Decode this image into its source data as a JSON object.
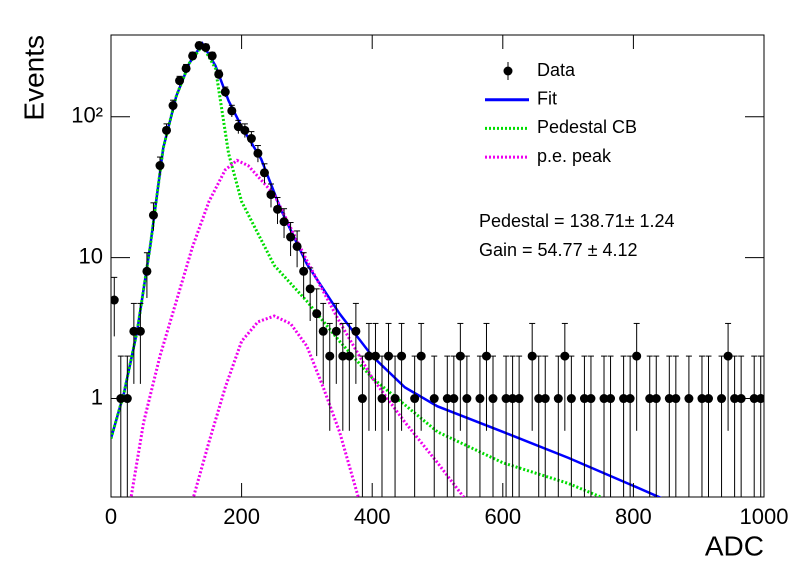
{
  "chart_data": {
    "type": "histogram-fit",
    "xlabel": "ADC",
    "ylabel": "Events",
    "xlim": [
      0,
      1000
    ],
    "ylim": [
      0.2,
      380
    ],
    "ylog": true,
    "xticks": [
      0,
      200,
      400,
      600,
      800,
      1000
    ],
    "yticks": [
      1,
      10,
      {
        "value": 100,
        "label": "10²"
      }
    ],
    "legend": "top-right",
    "annotations": [
      "Pedestal = 138.71± 1.24",
      "Gain = 54.77 ± 4.12"
    ],
    "series": [
      {
        "name": "Data",
        "kind": "points",
        "color": "#000000",
        "x": [
          5,
          15,
          25,
          35,
          45,
          55,
          65,
          75,
          85,
          95,
          105,
          115,
          125,
          135,
          145,
          155,
          165,
          175,
          185,
          195,
          205,
          215,
          225,
          235,
          245,
          255,
          265,
          275,
          285,
          295,
          305,
          315,
          325,
          335,
          345,
          355,
          365,
          375,
          385,
          395,
          405,
          415,
          425,
          435,
          445,
          455,
          465,
          475,
          485,
          495,
          505,
          515,
          525,
          535,
          545,
          555,
          565,
          575,
          585,
          595,
          605,
          615,
          625,
          635,
          645,
          655,
          665,
          675,
          685,
          695,
          705,
          715,
          725,
          735,
          745,
          755,
          765,
          775,
          785,
          795,
          805,
          815,
          825,
          835,
          845,
          855,
          865,
          875,
          885,
          895,
          905,
          915,
          925,
          935,
          945,
          955,
          965,
          975,
          985,
          995
        ],
        "values": [
          5,
          1,
          1,
          3,
          3,
          8,
          20,
          45,
          80,
          120,
          180,
          220,
          270,
          320,
          310,
          270,
          200,
          150,
          110,
          85,
          80,
          70,
          55,
          40,
          28,
          22,
          18,
          14,
          12,
          8,
          6,
          4,
          3,
          2,
          3,
          2,
          2,
          3,
          1,
          2,
          2,
          1,
          2,
          1,
          2,
          null,
          1,
          2,
          null,
          1,
          null,
          1,
          1,
          2,
          1,
          null,
          1,
          2,
          1,
          null,
          1,
          1,
          1,
          null,
          2,
          1,
          1,
          null,
          1,
          2,
          1,
          null,
          1,
          1,
          null,
          1,
          1,
          null,
          1,
          1,
          2,
          null,
          1,
          1,
          null,
          1,
          1,
          null,
          1,
          null,
          1,
          1,
          null,
          1,
          2,
          1,
          1,
          null,
          1,
          1
        ],
        "errors": [
          2.24,
          1,
          1,
          1.73,
          1.73,
          2.83,
          4.47,
          6.71,
          8.94,
          10.95,
          13.42,
          14.83,
          16.43,
          17.89,
          17.61,
          16.43,
          14.14,
          12.25,
          10.49,
          9.22,
          8.94,
          8.37,
          7.42,
          6.32,
          5.29,
          4.69,
          4.24,
          3.74,
          3.46,
          2.83,
          2.45,
          2,
          1.73,
          1.41,
          1.73,
          1.41,
          1.41,
          1.73,
          1,
          1.41,
          1.41,
          1,
          1.41,
          1,
          1.41,
          null,
          1,
          1.41,
          null,
          1,
          null,
          1,
          1,
          1.41,
          1,
          null,
          1,
          1.41,
          1,
          null,
          1,
          1,
          1,
          null,
          1.41,
          1,
          1,
          null,
          1,
          1.41,
          1,
          null,
          1,
          1,
          null,
          1,
          1,
          null,
          1,
          1,
          1.41,
          null,
          1,
          1,
          null,
          1,
          1,
          null,
          1,
          null,
          1,
          1,
          null,
          1,
          1.41,
          1,
          1,
          null,
          1,
          1
        ]
      },
      {
        "name": "Fit",
        "kind": "line",
        "dash": "solid",
        "color": "#0000ff",
        "x": [
          0,
          20,
          40,
          60,
          80,
          100,
          120,
          140,
          160,
          180,
          200,
          230,
          260,
          300,
          350,
          400,
          450,
          500,
          600,
          700,
          800,
          850
        ],
        "values": [
          0.52,
          1.1,
          3,
          12,
          60,
          140,
          240,
          330,
          230,
          130,
          85,
          50,
          22,
          9,
          4,
          2,
          1.2,
          0.88,
          0.58,
          0.38,
          0.24,
          0.19
        ]
      },
      {
        "name": "Pedestal CB",
        "kind": "line",
        "dash": "dotted",
        "color": "#00dd00",
        "x": [
          0,
          20,
          40,
          60,
          80,
          100,
          120,
          140,
          160,
          180,
          200,
          250,
          300,
          350,
          400,
          500,
          600,
          700,
          750
        ],
        "values": [
          0.52,
          1.1,
          3,
          12,
          60,
          140,
          240,
          320,
          220,
          55,
          25,
          8.8,
          4.9,
          2.55,
          1.4,
          0.58,
          0.35,
          0.25,
          0.2
        ]
      },
      {
        "name": "p.e. peak",
        "kind": "line",
        "dash": "dotted",
        "color": "#ee00ee",
        "x": [
          30,
          50,
          75,
          100,
          125,
          150,
          175,
          193,
          210,
          250,
          300,
          350,
          400,
          450,
          500,
          540
        ],
        "values": [
          0.19,
          0.68,
          2,
          4.9,
          12,
          25,
          42,
          49,
          45,
          28,
          9.5,
          3.5,
          1.4,
          0.68,
          0.35,
          0.2
        ]
      },
      {
        "kind": "line",
        "dash": "dotted",
        "color": "#ee00ee",
        "x": [
          125,
          150,
          175,
          200,
          225,
          250,
          275,
          300,
          325,
          350,
          380
        ],
        "values": [
          0.19,
          0.49,
          1.2,
          2.55,
          3.5,
          3.85,
          3.4,
          2.35,
          1.2,
          0.58,
          0.19
        ]
      }
    ]
  }
}
